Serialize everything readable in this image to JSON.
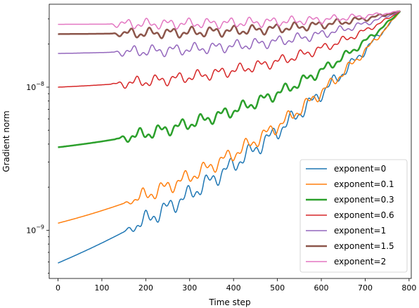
{
  "chart_data": {
    "type": "line",
    "xlabel": "Time step",
    "ylabel": "Gradient norm",
    "xlim": [
      -20,
      805
    ],
    "ylim": [
      4.6e-10,
      3.8e-08
    ],
    "yscale": "log",
    "xticks": [
      0,
      100,
      200,
      300,
      400,
      500,
      600,
      700,
      800
    ],
    "yticks": [
      {
        "value": 1e-09,
        "label": "10",
        "exp": "−9"
      },
      {
        "value": 1e-08,
        "label": "10",
        "exp": "−8"
      }
    ],
    "legend_position": "lower-right",
    "grid": false,
    "series": [
      {
        "name": "exponent=0",
        "color": "#1f77b4",
        "width": 1.5,
        "start": 5.9e-10,
        "osc_start": 150,
        "osc_amp": 0.07
      },
      {
        "name": "exponent=0.1",
        "color": "#ff7f0e",
        "width": 1.5,
        "start": 1.12e-09,
        "osc_start": 150,
        "osc_amp": 0.06
      },
      {
        "name": "exponent=0.3",
        "color": "#2ca02c",
        "width": 2.5,
        "start": 3.8e-09,
        "osc_start": 130,
        "osc_amp": 0.05
      },
      {
        "name": "exponent=0.6",
        "color": "#d62728",
        "width": 1.5,
        "start": 1e-08,
        "osc_start": 120,
        "osc_amp": 0.045
      },
      {
        "name": "exponent=1",
        "color": "#9467bd",
        "width": 1.5,
        "start": 1.72e-08,
        "osc_start": 120,
        "osc_amp": 0.045
      },
      {
        "name": "exponent=1.5",
        "color": "#8c564b",
        "width": 2.5,
        "start": 2.35e-08,
        "osc_start": 120,
        "osc_amp": 0.04
      },
      {
        "name": "exponent=2",
        "color": "#e377c2",
        "width": 1.5,
        "start": 2.75e-08,
        "osc_start": 110,
        "osc_amp": 0.04
      }
    ],
    "end_point": {
      "x": 780,
      "y": 3.4e-08
    }
  }
}
